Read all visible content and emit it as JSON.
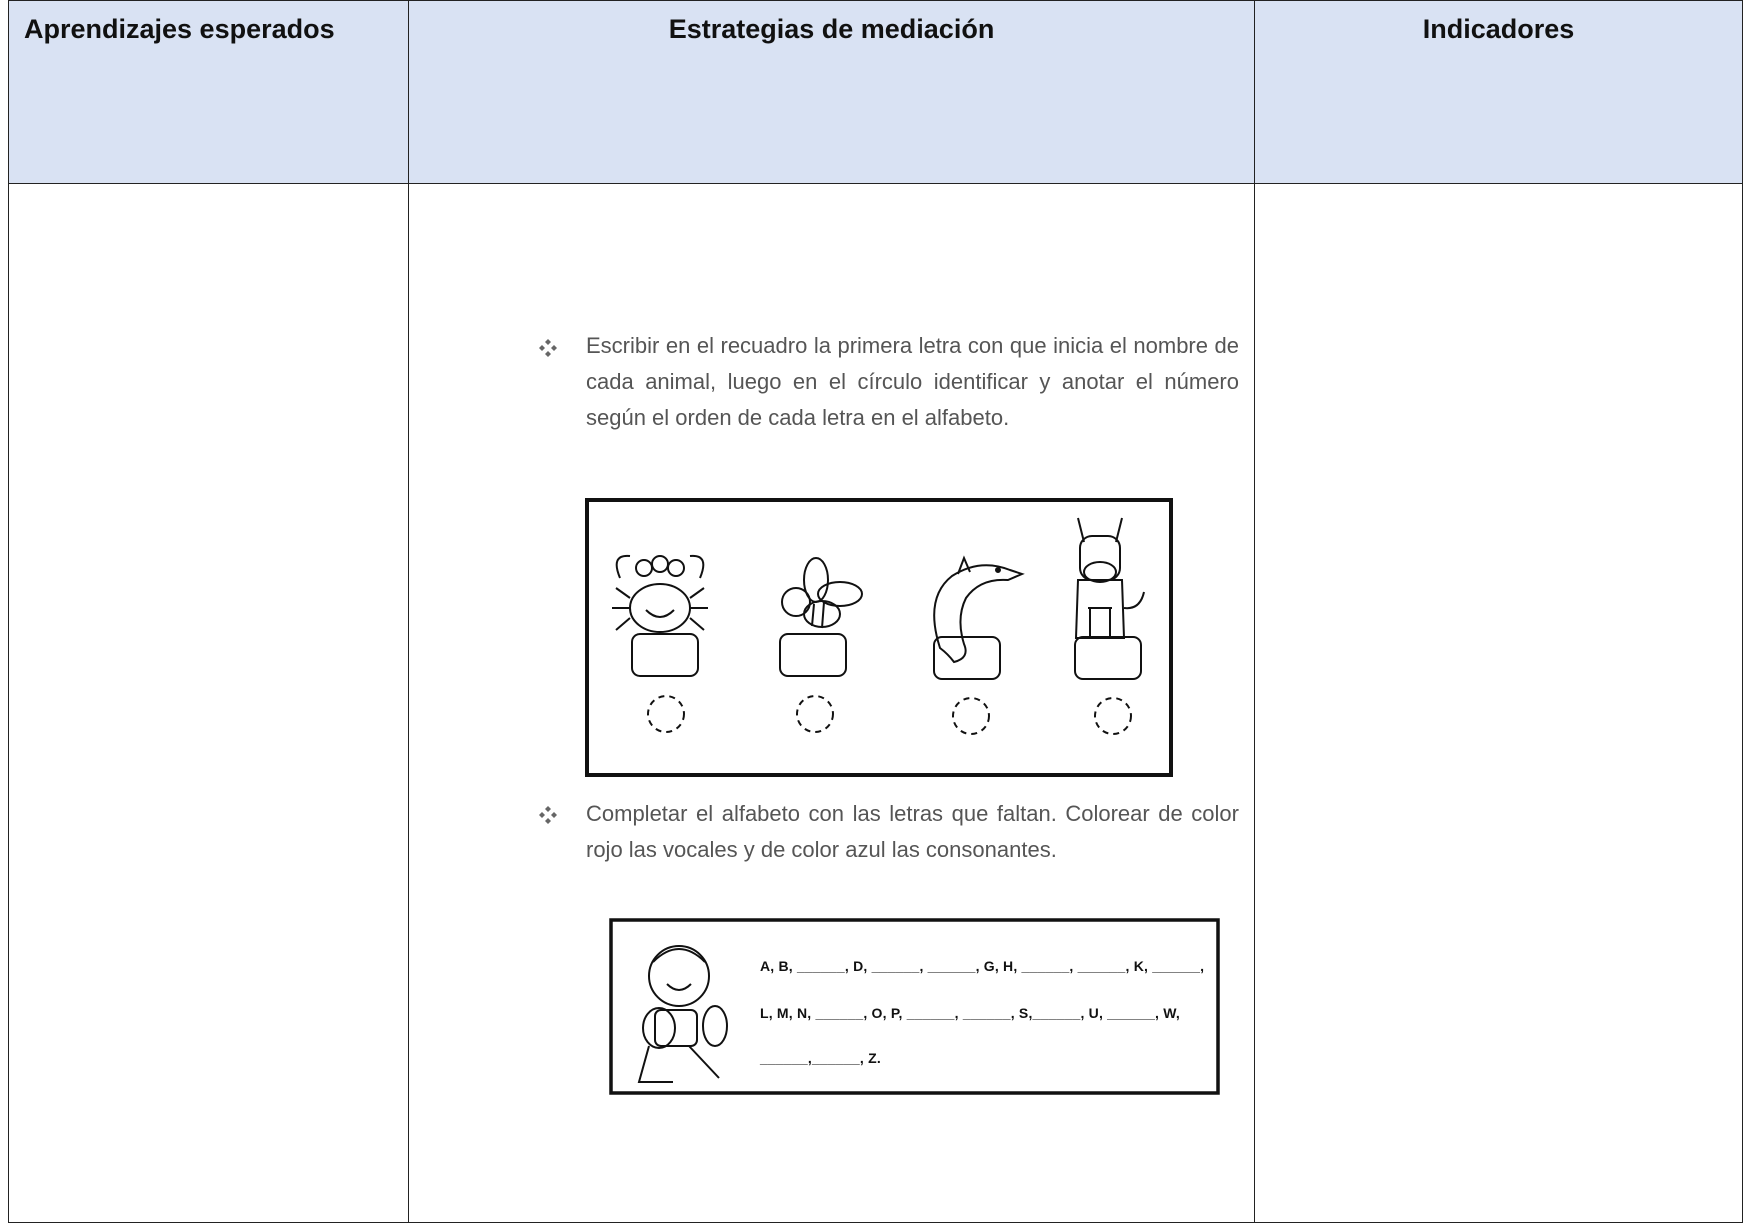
{
  "table": {
    "header": [
      "Aprendizajes esperados",
      "Estrategias de mediación",
      "Indicadores"
    ],
    "activities": [
      "Escribir en el recuadro la primera letra con que inicia el nombre de cada animal, luego en el círculo identificar y anotar el número según el orden de cada letra en el alfabeto.",
      "Completar el alfabeto con las letras que faltan. Colorear de color rojo las vocales y de color azul las consonantes."
    ],
    "alphabet_lines": [
      "A, B, ______, D, ______, ______, G, H, ______, ______, K, ______,",
      "L, M, N, ______, O, P, ______, ______, S,______, U, ______, W,",
      "______,______, Z."
    ]
  }
}
